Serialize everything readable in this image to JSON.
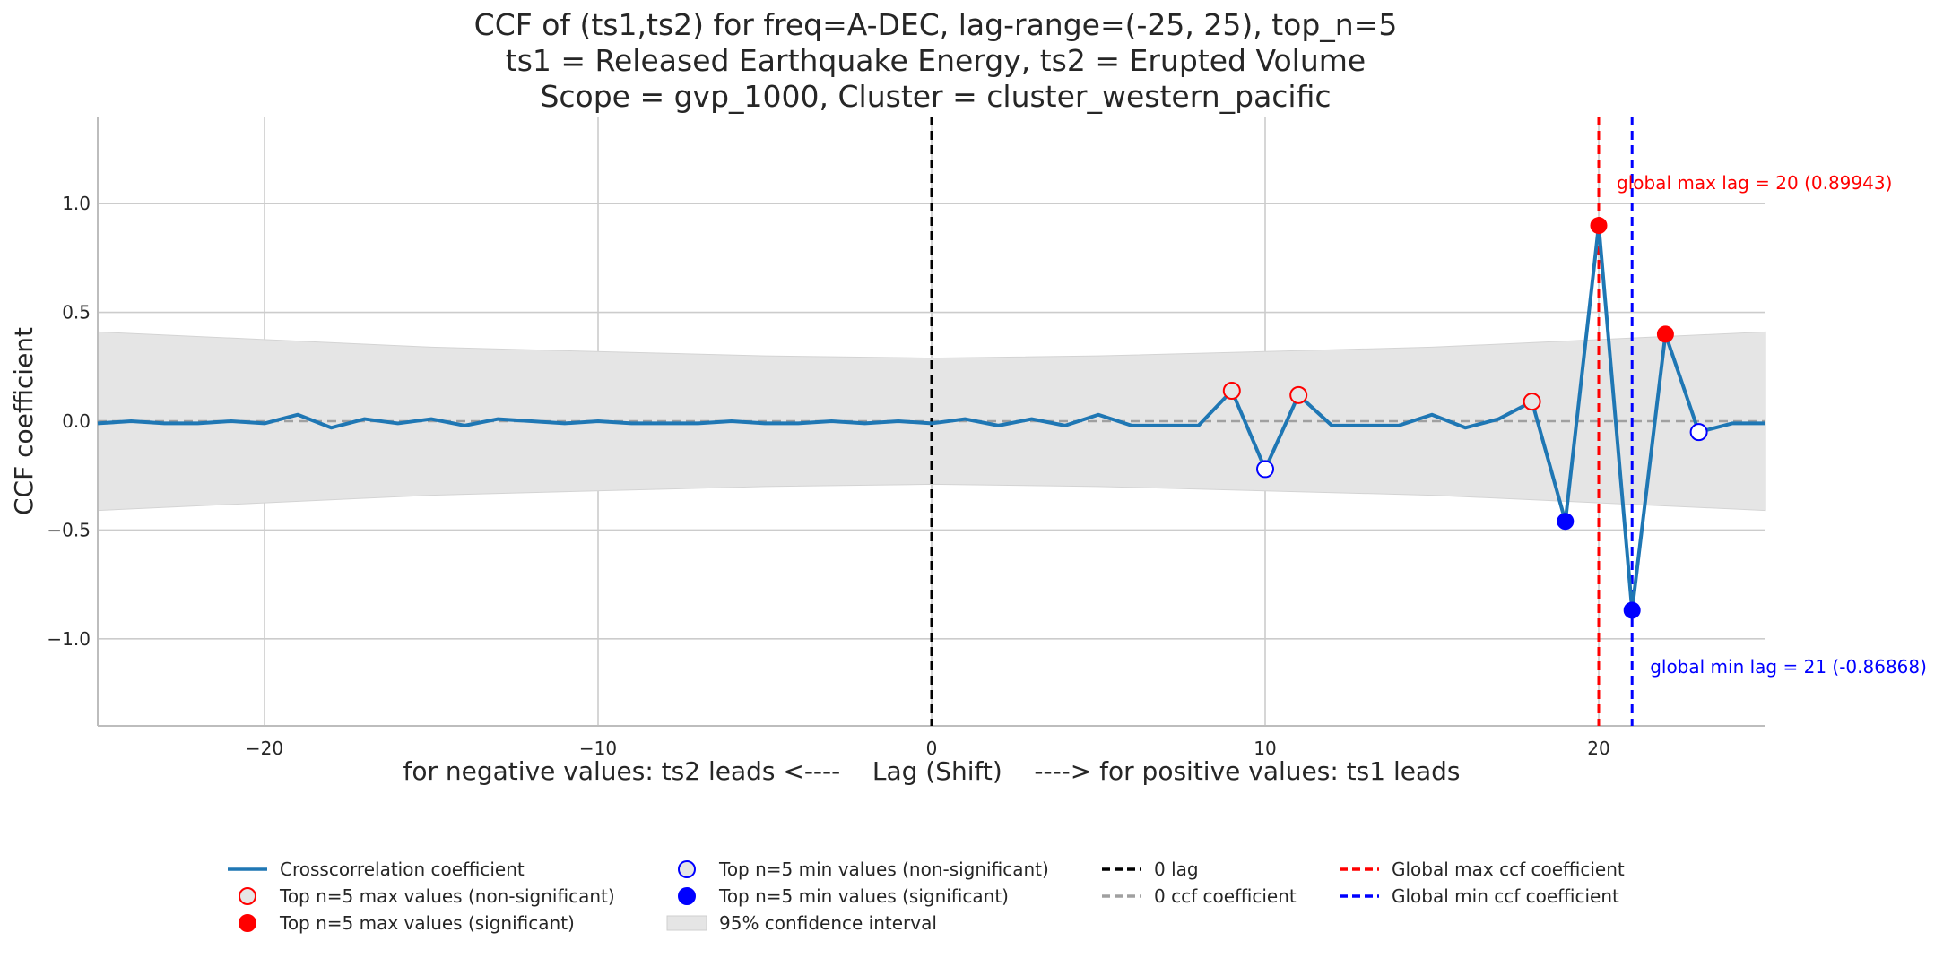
{
  "title_lines": [
    "CCF of (ts1,ts2) for freq=A-DEC, lag-range=(-25, 25), top_n=5",
    "ts1 = Released Earthquake Energy, ts2 = Erupted Volume",
    "Scope = gvp_1000, Cluster = cluster_western_pacific"
  ],
  "colors": {
    "line": "#1f77b4",
    "max": "#ff0000",
    "min": "#0000ff",
    "band": "#e5e5e5",
    "zero_lag": "#000000",
    "zero_ccf": "#a0a0a0",
    "grid": "#cccccc"
  },
  "chart_data": {
    "type": "line",
    "title": "CCF of (ts1,ts2) for freq=A-DEC, lag-range=(-25, 25), top_n=5",
    "xlabel": "for negative values: ts2 leads <----    Lag (Shift)    ----> for positive values: ts1 leads",
    "ylabel": "CCF coefficient",
    "xlim": [
      -25,
      25
    ],
    "ylim": [
      -1.4,
      1.4
    ],
    "xticks": [
      -20,
      -10,
      0,
      10,
      20
    ],
    "xtick_labels": [
      "−20",
      "−10",
      "0",
      "10",
      "20"
    ],
    "yticks": [
      1.0,
      0.5,
      0.0,
      -0.5,
      -1.0
    ],
    "ytick_labels": [
      "1.0",
      "0.5",
      "0.0",
      "−0.5",
      "−1.0"
    ],
    "grid": true,
    "legend_position": "bottom",
    "series": [
      {
        "name": "Crosscorrelation coefficient",
        "x": [
          -25,
          -24,
          -23,
          -22,
          -21,
          -20,
          -19,
          -18,
          -17,
          -16,
          -15,
          -14,
          -13,
          -12,
          -11,
          -10,
          -9,
          -8,
          -7,
          -6,
          -5,
          -4,
          -3,
          -2,
          -1,
          0,
          1,
          2,
          3,
          4,
          5,
          6,
          7,
          8,
          9,
          10,
          11,
          12,
          13,
          14,
          15,
          16,
          17,
          18,
          19,
          20,
          21,
          22,
          23,
          24,
          25
        ],
        "y": [
          -0.01,
          0.0,
          -0.01,
          -0.01,
          0.0,
          -0.01,
          0.03,
          -0.03,
          0.01,
          -0.01,
          0.01,
          -0.02,
          0.01,
          0.0,
          -0.01,
          0.0,
          -0.01,
          -0.01,
          -0.01,
          0.0,
          -0.01,
          -0.01,
          0.0,
          -0.01,
          0.0,
          -0.01,
          0.01,
          -0.02,
          0.01,
          -0.02,
          0.03,
          -0.02,
          -0.02,
          -0.02,
          0.14,
          -0.22,
          0.12,
          -0.02,
          -0.02,
          -0.02,
          0.03,
          -0.03,
          0.01,
          0.09,
          -0.46,
          0.89943,
          -0.86868,
          0.4,
          -0.05,
          -0.01,
          -0.01
        ]
      }
    ],
    "confidence_interval": {
      "name": "95% confidence interval",
      "x": [
        -25,
        -15,
        -5,
        0,
        5,
        15,
        25
      ],
      "upper": [
        0.41,
        0.34,
        0.3,
        0.29,
        0.3,
        0.34,
        0.41
      ],
      "lower": [
        -0.41,
        -0.34,
        -0.3,
        -0.29,
        -0.3,
        -0.34,
        -0.41
      ]
    },
    "top_max_nonsignificant": [
      [
        9,
        0.14
      ],
      [
        11,
        0.12
      ],
      [
        18,
        0.09
      ]
    ],
    "top_max_significant": [
      [
        20,
        0.89943
      ],
      [
        22,
        0.4
      ]
    ],
    "top_min_nonsignificant": [
      [
        10,
        -0.22
      ],
      [
        23,
        -0.05
      ]
    ],
    "top_min_significant": [
      [
        19,
        -0.46
      ],
      [
        21,
        -0.86868
      ]
    ],
    "zero_lag": 0,
    "zero_ccf": 0,
    "global_max": {
      "lag": 20,
      "value": 0.89943,
      "label": "global max lag = 20 (0.89943)"
    },
    "global_min": {
      "lag": 21,
      "value": -0.86868,
      "label": "global min lag = 21 (-0.86868)"
    }
  },
  "legend": [
    {
      "label": "Crosscorrelation coefficient",
      "kind": "line",
      "color": "#1f77b4",
      "col": 0,
      "row": 0
    },
    {
      "label": "Top n=5 max values (non-significant)",
      "kind": "circle-open",
      "color": "#ff0000",
      "col": 0,
      "row": 1
    },
    {
      "label": "Top n=5 max values (significant)",
      "kind": "circle-filled",
      "color": "#ff0000",
      "col": 0,
      "row": 2
    },
    {
      "label": "Top n=5 min values (non-significant)",
      "kind": "circle-open",
      "color": "#0000ff",
      "col": 1,
      "row": 0
    },
    {
      "label": "Top n=5 min values (significant)",
      "kind": "circle-filled",
      "color": "#0000ff",
      "col": 1,
      "row": 1
    },
    {
      "label": "95% confidence interval",
      "kind": "patch",
      "color": "#e5e5e5",
      "col": 1,
      "row": 2
    },
    {
      "label": "0 lag",
      "kind": "dash",
      "color": "#000000",
      "col": 2,
      "row": 0
    },
    {
      "label": "0 ccf coefficient",
      "kind": "dash",
      "color": "#a0a0a0",
      "col": 2,
      "row": 1
    },
    {
      "label": "Global max ccf coefficient",
      "kind": "dash",
      "color": "#ff0000",
      "col": 3,
      "row": 0
    },
    {
      "label": "Global min ccf coefficient",
      "kind": "dash",
      "color": "#0000ff",
      "col": 3,
      "row": 1
    }
  ]
}
